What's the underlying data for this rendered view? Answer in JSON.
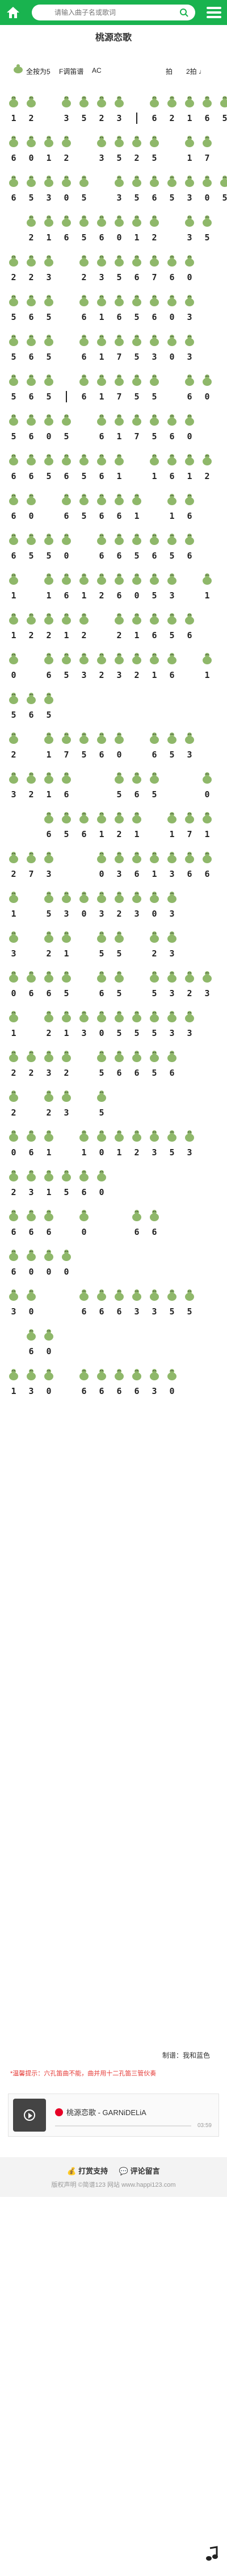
{
  "topbar": {
    "search_placeholder": "请输入曲子名或歌词"
  },
  "song": {
    "title": "桃源恋歌",
    "instrument_label": "全按为5̣",
    "key_label": "F调笛谱",
    "tempo_label": "AC",
    "meter_label": "拍",
    "meter_value": "2拍 ♩"
  },
  "score": {
    "lines": [
      [
        "1",
        "2",
        "",
        "3",
        "5",
        "2",
        "3",
        "|",
        "6",
        "2",
        "1",
        "6",
        "5"
      ],
      [
        "6",
        "0",
        "1",
        "2",
        "",
        "3",
        "5",
        "2",
        "5",
        "",
        "1",
        "7"
      ],
      [
        "6",
        "5",
        "3",
        "0",
        "5",
        "",
        "3",
        "5",
        "6",
        "5",
        "3",
        "0",
        "5"
      ],
      [
        "",
        "2",
        "1",
        "6",
        "5",
        "6",
        "0",
        "1",
        "2",
        "",
        "3",
        "5"
      ],
      [
        "2",
        "2",
        "3",
        "",
        "2",
        "3",
        "5",
        "6",
        "7",
        "6",
        "0",
        ""
      ],
      [
        "5",
        "6",
        "5",
        "",
        "6",
        "1",
        "6",
        "5",
        "6",
        "0",
        "3",
        ""
      ],
      [
        "5",
        "6",
        "5",
        "",
        "6",
        "1",
        "7",
        "5",
        "3",
        "0",
        "3",
        ""
      ],
      [
        "5",
        "6",
        "5",
        "|",
        "6",
        "1",
        "7",
        "5",
        "5",
        "",
        "6",
        "0"
      ],
      [
        "5",
        "6",
        "0",
        "5",
        "",
        "6",
        "1",
        "7",
        "5",
        "6",
        "0",
        ""
      ],
      [
        "6",
        "6",
        "5",
        "6",
        "5",
        "6",
        "1",
        "",
        "1",
        "6",
        "1",
        "2"
      ],
      [
        "6",
        "0",
        "",
        "6",
        "5",
        "6",
        "6",
        "1",
        "",
        "1",
        "6",
        ""
      ],
      [
        "6",
        "5",
        "5",
        "0",
        "",
        "6",
        "6",
        "5",
        "6",
        "5",
        "6",
        ""
      ],
      [
        "1",
        "",
        "1",
        "6",
        "1",
        "2",
        "6",
        "0",
        "5",
        "3",
        "",
        "1"
      ],
      [
        "1",
        "2",
        "2",
        "1",
        "2",
        "",
        "2",
        "1",
        "6",
        "5",
        "6",
        ""
      ],
      [
        "0",
        "",
        "6",
        "5",
        "3",
        "2",
        "3",
        "2",
        "1",
        "6",
        "",
        "1"
      ],
      [
        "5",
        "6",
        "5",
        "",
        "",
        "",
        "",
        "",
        "",
        "",
        "",
        ""
      ],
      [
        "2",
        "",
        "1",
        "7",
        "5",
        "6",
        "0",
        "",
        "6",
        "5",
        "3",
        ""
      ],
      [
        "3",
        "2",
        "1",
        "6",
        "",
        "",
        "5",
        "6",
        "5",
        "",
        "",
        "0"
      ],
      [
        "",
        "",
        "6",
        "5",
        "6",
        "1",
        "2",
        "1",
        "",
        "1",
        "7",
        "1"
      ],
      [
        "2",
        "7",
        "3",
        "",
        "",
        "0",
        "3",
        "6",
        "1",
        "3",
        "6",
        "6"
      ],
      [
        "1",
        "",
        "5",
        "3",
        "0",
        "3",
        "2",
        "3",
        "0",
        "3",
        ""
      ],
      [
        "3",
        "",
        "2",
        "1",
        "",
        "5",
        "5",
        "",
        "2",
        "3",
        "",
        ""
      ],
      [
        "0",
        "6",
        "6",
        "5",
        "",
        "6",
        "5",
        "",
        "5",
        "3",
        "2",
        "3"
      ],
      [
        "1",
        "",
        "2",
        "1",
        "3",
        "0",
        "5",
        "5",
        "5",
        "3",
        "3",
        ""
      ],
      [
        "2",
        "2",
        "3",
        "2",
        "",
        "5",
        "6",
        "6",
        "5",
        "6",
        "",
        ""
      ],
      [
        "2",
        "",
        "2",
        "3",
        "",
        "5",
        "",
        "",
        "",
        "",
        "",
        ""
      ],
      [
        "0",
        "6",
        "1",
        "",
        "1",
        "0",
        "1",
        "2",
        "3",
        "5",
        "3",
        ""
      ],
      [
        "2",
        "3",
        "1",
        "5",
        "6",
        "0",
        "",
        "",
        "",
        "",
        "",
        ""
      ],
      [
        "6",
        "6",
        "6",
        "",
        "0",
        "",
        "",
        "6",
        "6",
        "",
        "",
        ""
      ],
      [
        "6",
        "0",
        "0",
        "0",
        "",
        "",
        "",
        "",
        "",
        "",
        "",
        ""
      ],
      [
        "3",
        "0",
        "",
        "",
        "6",
        "6",
        "6",
        "3",
        "3",
        "5",
        "5",
        ""
      ],
      [
        "",
        "6",
        "0",
        "",
        "",
        "",
        "",
        "",
        "",
        "",
        "",
        ""
      ],
      [
        "1",
        "3",
        "0",
        "",
        "6",
        "6",
        "6",
        "6",
        "3",
        "0",
        "",
        ""
      ]
    ]
  },
  "footer": {
    "author_label": "制谱：",
    "author_value": "我和蓝色",
    "tip": "*温馨提示：六孔笛曲不能，曲并用十二孔笛三管伙奏",
    "player_song": "桃源恋歌 - GARNiDELiA",
    "player_time": "03:59",
    "link_reward": "打赏支持",
    "link_comment": "评论留言",
    "copyright": "版权声明 ©简谱123 网站 www.happi123.com"
  },
  "colors": {
    "accent": "#19b34f",
    "turtle": "#8fb86a",
    "tip": "#e53935"
  }
}
